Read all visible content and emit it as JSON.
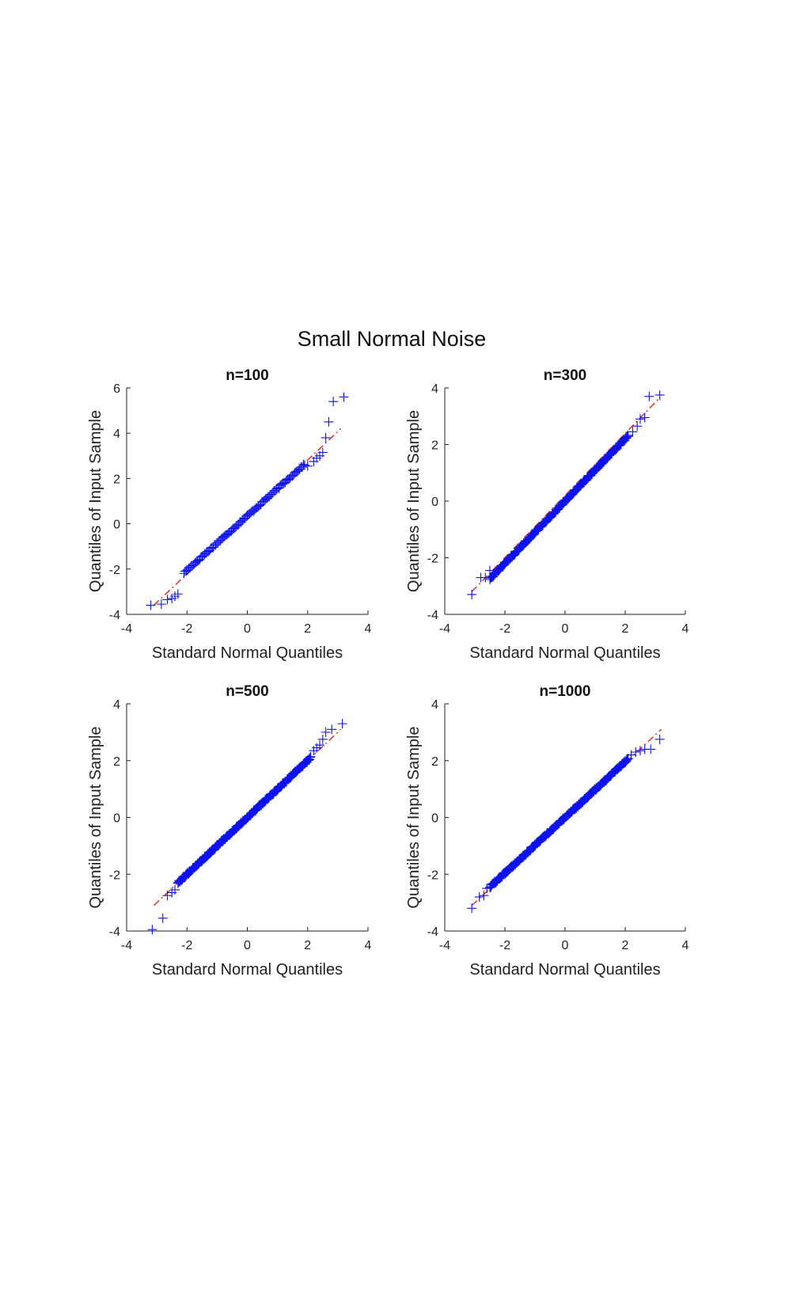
{
  "figure_title": "Small Normal Noise",
  "colors": {
    "marker": "#0d12f0",
    "reference_line": "#e8231e",
    "axis": "#222222",
    "background": "#ffffff"
  },
  "chart_data": [
    {
      "type": "scatter",
      "subtype": "qq-plot",
      "title": "n=100",
      "xlabel": "Standard Normal Quantiles",
      "ylabel": "Quantiles of Input Sample",
      "xlim": [
        -4,
        4
      ],
      "ylim": [
        -4,
        6
      ],
      "xticks": [
        "-4",
        "-2",
        "0",
        "2",
        "4"
      ],
      "yticks": [
        "-4",
        "-2",
        "0",
        "2",
        "4",
        "6"
      ],
      "grid": false,
      "reference_line": {
        "x": [
          -3.1,
          3.1
        ],
        "y": [
          -3.6,
          4.2
        ]
      },
      "series": [
        {
          "marker": "+",
          "n": 100,
          "bulk": {
            "x_range": [
              -2.1,
              1.9
            ],
            "intercept": 0.35,
            "slope": 1.2
          },
          "outliers": [
            {
              "x": -3.2,
              "y": -3.6
            },
            {
              "x": -2.85,
              "y": -3.55
            },
            {
              "x": -2.65,
              "y": -3.35
            },
            {
              "x": -2.5,
              "y": -3.3
            },
            {
              "x": -2.4,
              "y": -3.2
            },
            {
              "x": -2.3,
              "y": -3.1
            },
            {
              "x": 2.0,
              "y": 2.55
            },
            {
              "x": 2.2,
              "y": 2.75
            },
            {
              "x": 2.3,
              "y": 2.9
            },
            {
              "x": 2.4,
              "y": 3.0
            },
            {
              "x": 2.5,
              "y": 3.15
            },
            {
              "x": 2.6,
              "y": 3.8
            },
            {
              "x": 2.7,
              "y": 4.5
            },
            {
              "x": 2.85,
              "y": 5.4
            },
            {
              "x": 3.2,
              "y": 5.6
            }
          ]
        }
      ]
    },
    {
      "type": "scatter",
      "subtype": "qq-plot",
      "title": "n=300",
      "xlabel": "Standard Normal Quantiles",
      "ylabel": "Quantiles of Input Sample",
      "xlim": [
        -4,
        4
      ],
      "ylim": [
        -4,
        4
      ],
      "xticks": [
        "-4",
        "-2",
        "0",
        "2",
        "4"
      ],
      "yticks": [
        "-4",
        "-2",
        "0",
        "2",
        "4"
      ],
      "grid": false,
      "reference_line": {
        "x": [
          -3.1,
          3.1
        ],
        "y": [
          -3.2,
          3.6
        ]
      },
      "series": [
        {
          "marker": "+",
          "n": 300,
          "bulk": {
            "x_range": [
              -2.5,
              2.1
            ],
            "intercept": 0.0,
            "slope": 1.1
          },
          "outliers": [
            {
              "x": -3.1,
              "y": -3.3
            },
            {
              "x": -2.8,
              "y": -2.7
            },
            {
              "x": -2.65,
              "y": -2.7
            },
            {
              "x": -2.5,
              "y": -2.45
            },
            {
              "x": 2.25,
              "y": 2.45
            },
            {
              "x": 2.4,
              "y": 2.65
            },
            {
              "x": 2.5,
              "y": 2.9
            },
            {
              "x": 2.65,
              "y": 2.95
            },
            {
              "x": 2.8,
              "y": 3.7
            },
            {
              "x": 3.15,
              "y": 3.75
            }
          ]
        }
      ]
    },
    {
      "type": "scatter",
      "subtype": "qq-plot",
      "title": "n=500",
      "xlabel": "Standard Normal Quantiles",
      "ylabel": "Quantiles of Input Sample",
      "xlim": [
        -4,
        4
      ],
      "ylim": [
        -4,
        4
      ],
      "xticks": [
        "-4",
        "-2",
        "0",
        "2",
        "4"
      ],
      "yticks": [
        "-4",
        "-2",
        "0",
        "2",
        "4"
      ],
      "grid": false,
      "reference_line": {
        "x": [
          -3.1,
          3.1
        ],
        "y": [
          -3.1,
          3.1
        ]
      },
      "series": [
        {
          "marker": "+",
          "n": 500,
          "bulk": {
            "x_range": [
              -2.3,
              2.1
            ],
            "intercept": 0.0,
            "slope": 1.0
          },
          "outliers": [
            {
              "x": -3.15,
              "y": -3.95
            },
            {
              "x": -2.8,
              "y": -3.55
            },
            {
              "x": -2.65,
              "y": -2.75
            },
            {
              "x": -2.5,
              "y": -2.65
            },
            {
              "x": -2.4,
              "y": -2.55
            },
            {
              "x": 2.2,
              "y": 2.35
            },
            {
              "x": 2.3,
              "y": 2.45
            },
            {
              "x": 2.4,
              "y": 2.55
            },
            {
              "x": 2.5,
              "y": 2.75
            },
            {
              "x": 2.6,
              "y": 3.0
            },
            {
              "x": 2.8,
              "y": 3.1
            },
            {
              "x": 3.15,
              "y": 3.3
            }
          ]
        }
      ]
    },
    {
      "type": "scatter",
      "subtype": "qq-plot",
      "title": "n=1000",
      "xlabel": "Standard Normal Quantiles",
      "ylabel": "Quantiles of Input Sample",
      "xlim": [
        -4,
        4
      ],
      "ylim": [
        -4,
        4
      ],
      "xticks": [
        "-4",
        "-2",
        "0",
        "2",
        "4"
      ],
      "yticks": [
        "-4",
        "-2",
        "0",
        "2",
        "4"
      ],
      "grid": false,
      "reference_line": {
        "x": [
          -3.1,
          3.2
        ],
        "y": [
          -3.1,
          3.1
        ]
      },
      "series": [
        {
          "marker": "+",
          "n": 1000,
          "bulk": {
            "x_range": [
              -2.5,
              2.1
            ],
            "intercept": 0.0,
            "slope": 0.98
          },
          "outliers": [
            {
              "x": -3.1,
              "y": -3.2
            },
            {
              "x": -2.85,
              "y": -2.8
            },
            {
              "x": -2.7,
              "y": -2.75
            },
            {
              "x": -2.6,
              "y": -2.5
            },
            {
              "x": 2.2,
              "y": 2.2
            },
            {
              "x": 2.35,
              "y": 2.3
            },
            {
              "x": 2.5,
              "y": 2.35
            },
            {
              "x": 2.65,
              "y": 2.4
            },
            {
              "x": 2.85,
              "y": 2.4
            },
            {
              "x": 3.15,
              "y": 2.75
            }
          ]
        }
      ]
    }
  ]
}
